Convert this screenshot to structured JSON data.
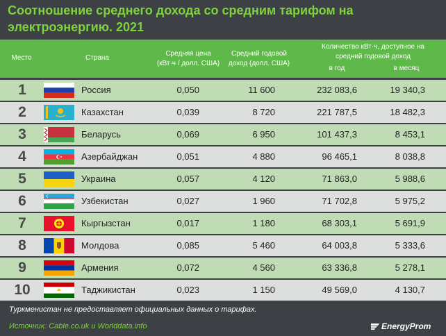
{
  "title": "Соотношение среднего дохода со средним тарифом на электроэнергию. 2021",
  "header": {
    "place": "Место",
    "country": "Страна",
    "price": [
      "Средняя цена",
      "(кВт·ч / долл. США)"
    ],
    "income": [
      "Средний годовой",
      "доход (долл. США)"
    ],
    "qty": [
      "Количество кВт·ч, доступное на",
      "средний годовой доход"
    ],
    "per_year": "в год",
    "per_month": "в месяц"
  },
  "rows": [
    {
      "rank": "1",
      "country": "Россия",
      "price": "0,050",
      "income": "11 600",
      "year": "232 083,6",
      "month": "19 340,3"
    },
    {
      "rank": "2",
      "country": "Казахстан",
      "price": "0,039",
      "income": "8 720",
      "year": "221 787,5",
      "month": "18 482,3"
    },
    {
      "rank": "3",
      "country": "Беларусь",
      "price": "0,069",
      "income": "6 950",
      "year": "101 437,3",
      "month": "8 453,1"
    },
    {
      "rank": "4",
      "country": "Азербайджан",
      "price": "0,051",
      "income": "4 880",
      "year": "96 465,1",
      "month": "8 038,8"
    },
    {
      "rank": "5",
      "country": "Украина",
      "price": "0,057",
      "income": "4 120",
      "year": "71 863,0",
      "month": "5 988,6"
    },
    {
      "rank": "6",
      "country": "Узбекистан",
      "price": "0,027",
      "income": "1 960",
      "year": "71 702,8",
      "month": "5 975,2"
    },
    {
      "rank": "7",
      "country": "Кыргызстан",
      "price": "0,017",
      "income": "1 180",
      "year": "68 303,1",
      "month": "5 691,9"
    },
    {
      "rank": "8",
      "country": "Молдова",
      "price": "0,085",
      "income": "5 460",
      "year": "64 003,8",
      "month": "5 333,6"
    },
    {
      "rank": "9",
      "country": "Армения",
      "price": "0,072",
      "income": "4 560",
      "year": "63 336,8",
      "month": "5 278,1"
    },
    {
      "rank": "10",
      "country": "Таджикистан",
      "price": "0,023",
      "income": "1 150",
      "year": "49 569,0",
      "month": "4 130,7"
    }
  ],
  "note": "Туркменистан не предоставляет официальных данных о тарифах.",
  "source": "Источник: Cable.co.uk и Worlddata.info",
  "logo": "EnergyProm",
  "colors": {
    "title": "#7ed23c",
    "header": "#5fb84a",
    "row_odd": "#bfdcb4",
    "row_even": "#dcdfdd",
    "background": "#3d4045"
  }
}
